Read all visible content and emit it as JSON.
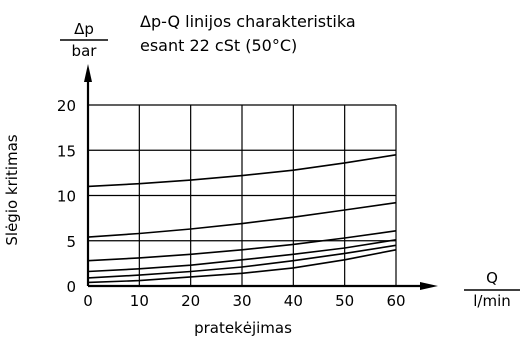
{
  "chart_data": {
    "type": "line",
    "title": "Δp-Q linijos charakteristika",
    "subtitle": "esant 22 cSt (50°C)",
    "y_unit": {
      "symbol": "Δp",
      "unit": "bar"
    },
    "x_unit": {
      "symbol": "Q",
      "unit": "l/min"
    },
    "ylabel": "Slėgio kritimas",
    "xlabel": "pratekėjimas",
    "xlim": [
      0,
      60
    ],
    "ylim": [
      0,
      20
    ],
    "x_ticks": [
      0,
      10,
      20,
      30,
      40,
      50,
      60
    ],
    "x_tick_labels": [
      "0",
      "10",
      "20",
      "30",
      "40",
      "50",
      "60"
    ],
    "y_ticks": [
      0,
      5,
      10,
      15,
      20
    ],
    "y_tick_labels": [
      "0",
      "5",
      "10",
      "15",
      "20"
    ],
    "grid": true,
    "x": [
      0,
      10,
      20,
      30,
      40,
      50,
      60
    ],
    "series": [
      {
        "values": [
          11.0,
          11.3,
          11.7,
          12.2,
          12.8,
          13.6,
          14.5
        ]
      },
      {
        "values": [
          5.4,
          5.8,
          6.3,
          6.9,
          7.6,
          8.4,
          9.2
        ]
      },
      {
        "values": [
          2.8,
          3.1,
          3.5,
          4.0,
          4.6,
          5.3,
          6.1
        ]
      },
      {
        "values": [
          1.6,
          1.9,
          2.3,
          2.9,
          3.5,
          4.2,
          5.1
        ]
      },
      {
        "values": [
          0.9,
          1.2,
          1.6,
          2.1,
          2.8,
          3.6,
          4.5
        ]
      },
      {
        "values": [
          0.4,
          0.6,
          1.0,
          1.4,
          2.0,
          2.9,
          4.0
        ]
      }
    ],
    "colors": {
      "line": "#000000",
      "grid": "#000000",
      "background": "#ffffff"
    }
  }
}
